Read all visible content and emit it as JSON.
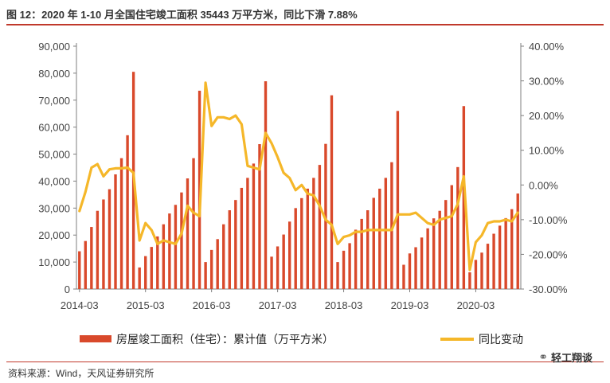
{
  "header": {
    "title": "图 12：2020 年 1-10 月全国住宅竣工面积 35443 万平方米，同比下滑 7.88%"
  },
  "footer": {
    "source": "资料来源：Wind，天风证券研究所",
    "brand": "轻工翔谈",
    "brand_icon": "wechat-icon"
  },
  "colors": {
    "bar": "#d9492b",
    "line": "#f5b729",
    "rule": "#c0392b",
    "axis": "#7f7f7f"
  },
  "chart_data": {
    "type": "bar",
    "grid": false,
    "legend_position": "bottom",
    "x_tick_labels": [
      "2014-03",
      "2015-03",
      "2016-03",
      "2017-03",
      "2018-03",
      "2019-03",
      "2020-03"
    ],
    "x": [
      "2014-03",
      "2014-04",
      "2014-05",
      "2014-06",
      "2014-07",
      "2014-08",
      "2014-09",
      "2014-10",
      "2014-11",
      "2014-12",
      "2015-02",
      "2015-03",
      "2015-04",
      "2015-05",
      "2015-06",
      "2015-07",
      "2015-08",
      "2015-09",
      "2015-10",
      "2015-11",
      "2015-12",
      "2016-02",
      "2016-03",
      "2016-04",
      "2016-05",
      "2016-06",
      "2016-07",
      "2016-08",
      "2016-09",
      "2016-10",
      "2016-11",
      "2016-12",
      "2017-02",
      "2017-03",
      "2017-04",
      "2017-05",
      "2017-06",
      "2017-07",
      "2017-08",
      "2017-09",
      "2017-10",
      "2017-11",
      "2017-12",
      "2018-02",
      "2018-03",
      "2018-04",
      "2018-05",
      "2018-06",
      "2018-07",
      "2018-08",
      "2018-09",
      "2018-10",
      "2018-11",
      "2018-12",
      "2019-02",
      "2019-03",
      "2019-04",
      "2019-05",
      "2019-06",
      "2019-07",
      "2019-08",
      "2019-09",
      "2019-10",
      "2019-11",
      "2019-12",
      "2020-02",
      "2020-03",
      "2020-04",
      "2020-05",
      "2020-06",
      "2020-07",
      "2020-08",
      "2020-09",
      "2020-10"
    ],
    "series": [
      {
        "name": "房屋竣工面积（住宅）：累计值（万平方米）",
        "type": "bar",
        "axis": "left",
        "values": [
          14000,
          17800,
          23000,
          29000,
          33200,
          37000,
          42500,
          48500,
          57000,
          80500,
          8000,
          12200,
          15600,
          19500,
          24000,
          28000,
          31200,
          35800,
          41000,
          48500,
          73500,
          10000,
          14500,
          18500,
          24000,
          29200,
          33000,
          37500,
          41200,
          46500,
          53700,
          77000,
          12000,
          15800,
          20200,
          25000,
          30000,
          33700,
          37200,
          41200,
          46000,
          53800,
          71800,
          10000,
          14200,
          17000,
          22000,
          26000,
          29200,
          33800,
          37200,
          41200,
          47000,
          66000,
          9000,
          13200,
          15500,
          19100,
          22500,
          26200,
          29000,
          33000,
          38500,
          45200,
          67800,
          6200,
          10800,
          13500,
          16800,
          20500,
          23500,
          26300,
          29600,
          35400
        ]
      },
      {
        "name": "同比变动",
        "type": "line",
        "axis": "right",
        "values": [
          -7.5,
          -2.0,
          5.0,
          6.0,
          2.5,
          4.5,
          4.8,
          4.8,
          5.0,
          3.5,
          -16.0,
          -11.0,
          -13.0,
          -17.0,
          -16.0,
          -16.5,
          -17.0,
          -14.0,
          -6.0,
          -8.0,
          -9.0,
          29.5,
          17.0,
          19.5,
          19.5,
          19.0,
          20.0,
          17.5,
          5.5,
          5.0,
          4.5,
          15.0,
          12.0,
          8.0,
          3.5,
          2.0,
          -1.5,
          0.0,
          -2.5,
          -3.0,
          -6.0,
          -10.0,
          -11.5,
          -17.0,
          -15.0,
          -14.5,
          -13.5,
          -13.5,
          -13.0,
          -13.0,
          -13.0,
          -13.0,
          -13.0,
          -8.5,
          -8.5,
          -8.5,
          -8.0,
          -9.5,
          -11.0,
          -11.5,
          -10.0,
          -9.5,
          -9.0,
          -5.5,
          2.5,
          -24.5,
          -16.5,
          -14.5,
          -11.0,
          -10.5,
          -10.5,
          -10.0,
          -10.5,
          -8.0
        ]
      }
    ],
    "y_left": {
      "min": 0,
      "max": 90000,
      "step": 10000,
      "tick_labels": [
        "0",
        "10,000",
        "20,000",
        "30,000",
        "40,000",
        "50,000",
        "60,000",
        "70,000",
        "80,000",
        "90,000"
      ]
    },
    "y_right": {
      "min": -30,
      "max": 40,
      "step": 10,
      "tick_labels": [
        "-30.00%",
        "-20.00%",
        "-10.00%",
        "0.00%",
        "10.00%",
        "20.00%",
        "30.00%",
        "40.00%"
      ]
    }
  }
}
